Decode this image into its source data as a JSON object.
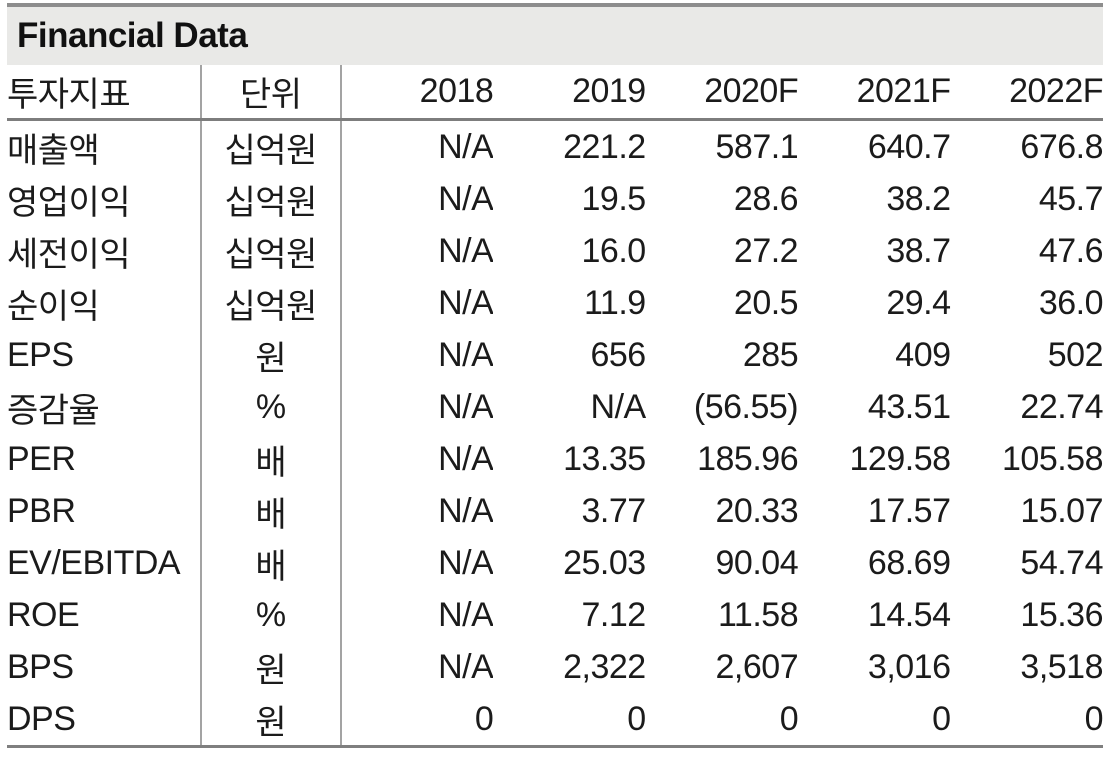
{
  "title": "Financial Data",
  "colors": {
    "title_bg": "#e9e9e7",
    "strong_border": "#7d7d7d",
    "vertical_border": "#a3a3a3",
    "text": "#1b1b1b"
  },
  "table": {
    "columns": [
      "투자지표",
      "단위",
      "2018",
      "2019",
      "2020F",
      "2021F",
      "2022F"
    ],
    "rows": [
      {
        "metric": "매출액",
        "unit": "십억원",
        "values": [
          "N/A",
          "221.2",
          "587.1",
          "640.7",
          "676.8"
        ]
      },
      {
        "metric": "영업이익",
        "unit": "십억원",
        "values": [
          "N/A",
          "19.5",
          "28.6",
          "38.2",
          "45.7"
        ]
      },
      {
        "metric": "세전이익",
        "unit": "십억원",
        "values": [
          "N/A",
          "16.0",
          "27.2",
          "38.7",
          "47.6"
        ]
      },
      {
        "metric": "순이익",
        "unit": "십억원",
        "values": [
          "N/A",
          "11.9",
          "20.5",
          "29.4",
          "36.0"
        ]
      },
      {
        "metric": "EPS",
        "unit": "원",
        "values": [
          "N/A",
          "656",
          "285",
          "409",
          "502"
        ]
      },
      {
        "metric": "증감율",
        "unit": "%",
        "values": [
          "N/A",
          "N/A",
          "(56.55)",
          "43.51",
          "22.74"
        ]
      },
      {
        "metric": "PER",
        "unit": "배",
        "values": [
          "N/A",
          "13.35",
          "185.96",
          "129.58",
          "105.58"
        ]
      },
      {
        "metric": "PBR",
        "unit": "배",
        "values": [
          "N/A",
          "3.77",
          "20.33",
          "17.57",
          "15.07"
        ]
      },
      {
        "metric": "EV/EBITDA",
        "unit": "배",
        "values": [
          "N/A",
          "25.03",
          "90.04",
          "68.69",
          "54.74"
        ]
      },
      {
        "metric": "ROE",
        "unit": "%",
        "values": [
          "N/A",
          "7.12",
          "11.58",
          "14.54",
          "15.36"
        ]
      },
      {
        "metric": "BPS",
        "unit": "원",
        "values": [
          "N/A",
          "2,322",
          "2,607",
          "3,016",
          "3,518"
        ]
      },
      {
        "metric": "DPS",
        "unit": "원",
        "values": [
          "0",
          "0",
          "0",
          "0",
          "0"
        ]
      }
    ]
  }
}
